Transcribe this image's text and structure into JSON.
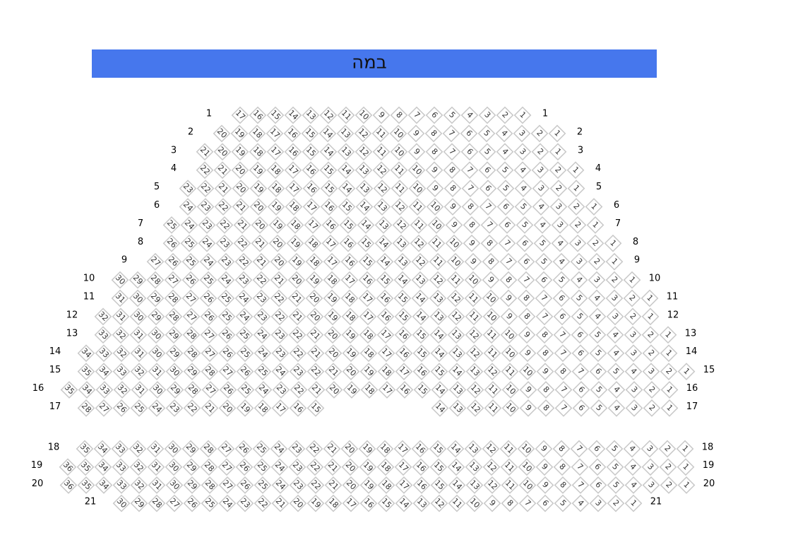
{
  "stage": {
    "label": "במה"
  },
  "rows": [
    {
      "label": 1,
      "blocks": [
        [
          17,
          16,
          15,
          14,
          13,
          12,
          11,
          10,
          9,
          8,
          7,
          6,
          5,
          4,
          3,
          2,
          1
        ]
      ]
    },
    {
      "label": 2,
      "blocks": [
        [
          20,
          19,
          18,
          17,
          16,
          15,
          14,
          13,
          12,
          11,
          10,
          9,
          8,
          7,
          6,
          5,
          4,
          3,
          2,
          1
        ]
      ]
    },
    {
      "label": 3,
      "blocks": [
        [
          21,
          20,
          19,
          18,
          17,
          16,
          15,
          14,
          13,
          12,
          11,
          10,
          9,
          8,
          7,
          6,
          5,
          4,
          3,
          2,
          1
        ]
      ]
    },
    {
      "label": 4,
      "blocks": [
        [
          22,
          21,
          20,
          19,
          18,
          17,
          16,
          15,
          14,
          13,
          12,
          11,
          10,
          9,
          8,
          7,
          6,
          5,
          4,
          3,
          2,
          1
        ]
      ]
    },
    {
      "label": 5,
      "blocks": [
        [
          23,
          22,
          21,
          20,
          19,
          18,
          17,
          16,
          15,
          14,
          13,
          12,
          11,
          10,
          9,
          8,
          7,
          6,
          5,
          4,
          3,
          2,
          1
        ]
      ]
    },
    {
      "label": 6,
      "blocks": [
        [
          24,
          23,
          22,
          21,
          20,
          19,
          18,
          17,
          16,
          15,
          14,
          13,
          12,
          11,
          10,
          9,
          8,
          7,
          6,
          5,
          4,
          3,
          2,
          1
        ]
      ]
    },
    {
      "label": 7,
      "blocks": [
        [
          25,
          24,
          23,
          22,
          21,
          20,
          19,
          18,
          17,
          16,
          15,
          14,
          13,
          12,
          11,
          10,
          9,
          8,
          7,
          6,
          5,
          4,
          3,
          2,
          1
        ]
      ]
    },
    {
      "label": 8,
      "blocks": [
        [
          26,
          25,
          24,
          23,
          22,
          21,
          20,
          19,
          18,
          17,
          16,
          15,
          14,
          13,
          12,
          11,
          10,
          9,
          8,
          7,
          6,
          5,
          4,
          3,
          2,
          1
        ]
      ]
    },
    {
      "label": 9,
      "blocks": [
        [
          27,
          26,
          25,
          24,
          23,
          22,
          21,
          20,
          19,
          18,
          17,
          16,
          15,
          14,
          13,
          12,
          11,
          10,
          9,
          8,
          7,
          6,
          5,
          4,
          3,
          2,
          1
        ]
      ]
    },
    {
      "label": 10,
      "blocks": [
        [
          30,
          29,
          28,
          27,
          26,
          25,
          24,
          23,
          22,
          21,
          20,
          19,
          18,
          17,
          16,
          15,
          14,
          13,
          12,
          11,
          10,
          9,
          8,
          7,
          6,
          5,
          4,
          3,
          2,
          1
        ]
      ]
    },
    {
      "label": 11,
      "blocks": [
        [
          31,
          30,
          29,
          28,
          27,
          26,
          25,
          24,
          23,
          22,
          21,
          20,
          19,
          18,
          17,
          16,
          15,
          14,
          13,
          12,
          11,
          10,
          9,
          8,
          7,
          6,
          5,
          4,
          3,
          2,
          1
        ]
      ]
    },
    {
      "label": 12,
      "blocks": [
        [
          32,
          31,
          30,
          29,
          28,
          27,
          26,
          25,
          24,
          23,
          22,
          21,
          20,
          19,
          18,
          17,
          16,
          15,
          14,
          13,
          12,
          11,
          10,
          9,
          8,
          7,
          6,
          5,
          4,
          3,
          2,
          1
        ]
      ]
    },
    {
      "label": 13,
      "blocks": [
        [
          33,
          32,
          31,
          30,
          29,
          28,
          27,
          26,
          25,
          24,
          23,
          22,
          21,
          20,
          19,
          18,
          17,
          16,
          15,
          14,
          13,
          12,
          11,
          10,
          9,
          8,
          7,
          6,
          5,
          4,
          3,
          2,
          1
        ]
      ]
    },
    {
      "label": 14,
      "blocks": [
        [
          34,
          33,
          32,
          31,
          30,
          29,
          28,
          27,
          26,
          25,
          24,
          23,
          22,
          21,
          20,
          19,
          18,
          17,
          16,
          15,
          14,
          13,
          12,
          11,
          10,
          9,
          8,
          7,
          6,
          5,
          4,
          3,
          2,
          1
        ]
      ]
    },
    {
      "label": 15,
      "blocks": [
        [
          35,
          34,
          33,
          32,
          31,
          30,
          29,
          28,
          27,
          26,
          25,
          24,
          23,
          22,
          21,
          20,
          19,
          18,
          17,
          16,
          15,
          14,
          13,
          12,
          11,
          10,
          9,
          8,
          7,
          6,
          5,
          4,
          3,
          2,
          1
        ]
      ]
    },
    {
      "label": 16,
      "blocks": [
        [
          35,
          34,
          33,
          32,
          31,
          30,
          29,
          28,
          27,
          26,
          25,
          24,
          23,
          22,
          21,
          20,
          19,
          18,
          17,
          16,
          15,
          14,
          13,
          12,
          11,
          10,
          9,
          8,
          7,
          6,
          5,
          4,
          3,
          2,
          1
        ]
      ]
    },
    {
      "label": 17,
      "blocks": [
        [
          28,
          27,
          26,
          25,
          24,
          23,
          22,
          21,
          20,
          19,
          18,
          17,
          16,
          15
        ],
        [
          14,
          13,
          12,
          11,
          10,
          9,
          8,
          7,
          6,
          5,
          4,
          3,
          2,
          1
        ]
      ]
    },
    {
      "label": 18,
      "blocks": [
        [
          35,
          34,
          33,
          32,
          31,
          30,
          29,
          28,
          27,
          26,
          25,
          24,
          23,
          22,
          21,
          20,
          19,
          18,
          17,
          16,
          15,
          14,
          13,
          12,
          11,
          10,
          9,
          8,
          7,
          6,
          5,
          4,
          3,
          2,
          1
        ]
      ]
    },
    {
      "label": 19,
      "blocks": [
        [
          36,
          35,
          34,
          33,
          32,
          31,
          30,
          29,
          28,
          27,
          26,
          25,
          24,
          23,
          22,
          21,
          20,
          19,
          18,
          17,
          16,
          15,
          14,
          13,
          12,
          11,
          10,
          9,
          8,
          7,
          6,
          5,
          4,
          3,
          2,
          1
        ]
      ]
    },
    {
      "label": 20,
      "blocks": [
        [
          36,
          35,
          34,
          33,
          32,
          31,
          30,
          29,
          28,
          27,
          26,
          25,
          24,
          23,
          22,
          21,
          20,
          19,
          18,
          17,
          16,
          15,
          14,
          13,
          12,
          11,
          10,
          9,
          8,
          7,
          6,
          5,
          4,
          3,
          2,
          1
        ]
      ]
    },
    {
      "label": 21,
      "blocks": [
        [
          30,
          29,
          28,
          27,
          26,
          25,
          24,
          23,
          22,
          21,
          20,
          19,
          18,
          17,
          16,
          15,
          14,
          13,
          12,
          11,
          10,
          9,
          8,
          7,
          6,
          5,
          4,
          3,
          2,
          1
        ]
      ]
    }
  ]
}
